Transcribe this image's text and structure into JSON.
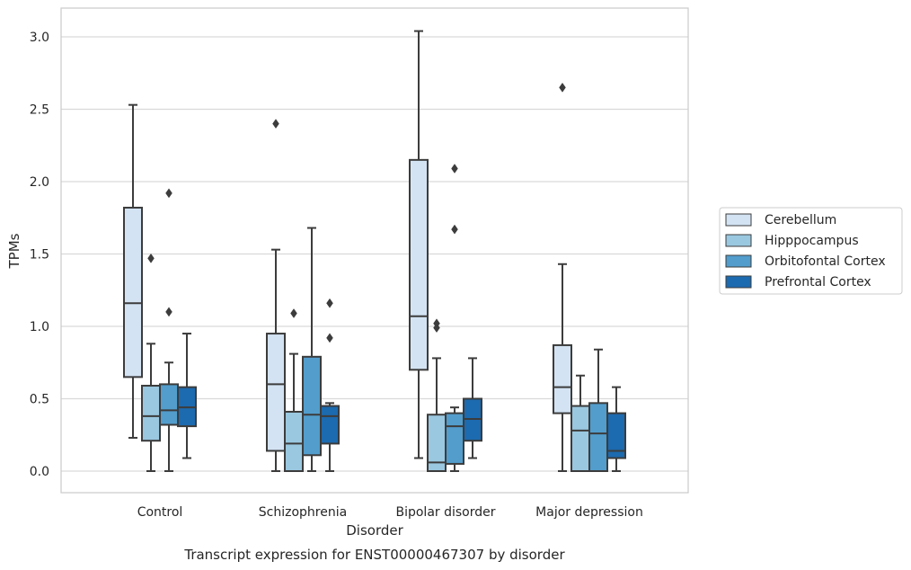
{
  "chart_data": {
    "type": "boxplot",
    "title": "",
    "caption": "Transcript expression for ENST00000467307 by disorder",
    "xlabel": "Disorder",
    "ylabel": "TPMs",
    "ylim": [
      -0.15,
      3.2
    ],
    "yticks": [
      0.0,
      0.5,
      1.0,
      1.5,
      2.0,
      2.5,
      3.0
    ],
    "ytick_labels": [
      "0.0",
      "0.5",
      "1.0",
      "1.5",
      "2.0",
      "2.5",
      "3.0"
    ],
    "grid": "horizontal",
    "legend_position": "right",
    "categories": [
      "Control",
      "Schizophrenia",
      "Bipolar disorder",
      "Major depression"
    ],
    "series": [
      {
        "name": "Cerebellum",
        "color": "#d3e3f3",
        "boxes": [
          {
            "whislo": 0.23,
            "q1": 0.65,
            "med": 1.16,
            "q3": 1.82,
            "whishi": 2.53,
            "fliers": []
          },
          {
            "whislo": 0.0,
            "q1": 0.14,
            "med": 0.6,
            "q3": 0.95,
            "whishi": 1.53,
            "fliers": [
              2.4
            ]
          },
          {
            "whislo": 0.09,
            "q1": 0.7,
            "med": 1.07,
            "q3": 2.15,
            "whishi": 3.04,
            "fliers": []
          },
          {
            "whislo": 0.0,
            "q1": 0.4,
            "med": 0.58,
            "q3": 0.87,
            "whishi": 1.43,
            "fliers": [
              2.65
            ]
          }
        ]
      },
      {
        "name": "Hipppocampus",
        "color": "#9ac8e0",
        "boxes": [
          {
            "whislo": 0.0,
            "q1": 0.21,
            "med": 0.38,
            "q3": 0.59,
            "whishi": 0.88,
            "fliers": [
              1.47
            ]
          },
          {
            "whislo": 0.0,
            "q1": 0.0,
            "med": 0.19,
            "q3": 0.41,
            "whishi": 0.81,
            "fliers": [
              1.09
            ]
          },
          {
            "whislo": 0.0,
            "q1": 0.0,
            "med": 0.06,
            "q3": 0.39,
            "whishi": 0.78,
            "fliers": [
              0.99,
              1.02
            ]
          },
          {
            "whislo": 0.0,
            "q1": 0.0,
            "med": 0.28,
            "q3": 0.45,
            "whishi": 0.66,
            "fliers": []
          }
        ]
      },
      {
        "name": "Orbitofontal Cortex",
        "color": "#529dcc",
        "boxes": [
          {
            "whislo": 0.0,
            "q1": 0.32,
            "med": 0.42,
            "q3": 0.6,
            "whishi": 0.75,
            "fliers": [
              1.1,
              1.92
            ]
          },
          {
            "whislo": 0.0,
            "q1": 0.11,
            "med": 0.39,
            "q3": 0.79,
            "whishi": 1.68,
            "fliers": []
          },
          {
            "whislo": 0.0,
            "q1": 0.05,
            "med": 0.31,
            "q3": 0.4,
            "whishi": 0.44,
            "fliers": [
              1.67,
              2.09
            ]
          },
          {
            "whislo": 0.0,
            "q1": 0.0,
            "med": 0.26,
            "q3": 0.47,
            "whishi": 0.84,
            "fliers": []
          }
        ]
      },
      {
        "name": "Prefrontal Cortex",
        "color": "#1c6aaf",
        "boxes": [
          {
            "whislo": 0.09,
            "q1": 0.31,
            "med": 0.44,
            "q3": 0.58,
            "whishi": 0.95,
            "fliers": []
          },
          {
            "whislo": 0.0,
            "q1": 0.19,
            "med": 0.38,
            "q3": 0.45,
            "whishi": 0.47,
            "fliers": [
              0.92,
              1.16
            ]
          },
          {
            "whislo": 0.09,
            "q1": 0.21,
            "med": 0.36,
            "q3": 0.5,
            "whishi": 0.78,
            "fliers": []
          },
          {
            "whislo": 0.0,
            "q1": 0.09,
            "med": 0.14,
            "q3": 0.4,
            "whishi": 0.58,
            "fliers": []
          }
        ]
      }
    ]
  },
  "colors": {
    "grid": "#d9d9d9",
    "axes_edge": "#cccccc",
    "box_edge": "#3c3c3c",
    "text": "#262626"
  }
}
